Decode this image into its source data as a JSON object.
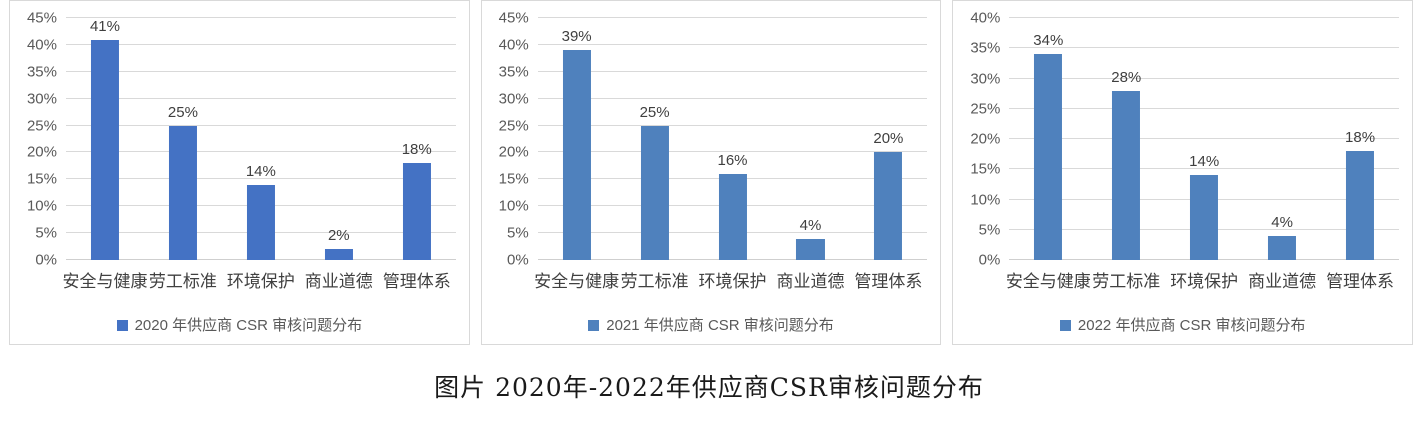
{
  "caption": "图片 2020年-2022年供应商CSR审核问题分布",
  "colors": {
    "bar_2020": "#4472C4",
    "bar_2021": "#4F81BD",
    "bar_2022": "#4F81BD",
    "gridline": "#D9D9D9",
    "axis_text": "#595959",
    "label_text": "#3F3F3F"
  },
  "chart_data": [
    {
      "type": "bar",
      "title": "",
      "legend": "2020 年供应商 CSR 审核问题分布",
      "legend_position": "bottom",
      "categories": [
        "安全与健康",
        "劳工标准",
        "环境保护",
        "商业道德",
        "管理体系"
      ],
      "values": [
        41,
        25,
        14,
        2,
        18
      ],
      "data_labels": [
        "41%",
        "25%",
        "14%",
        "2%",
        "18%"
      ],
      "xlabel": "",
      "ylabel": "",
      "ylim": [
        0,
        45
      ],
      "ytick_step": 5,
      "ytick_labels": [
        "0%",
        "5%",
        "10%",
        "15%",
        "20%",
        "25%",
        "30%",
        "35%",
        "40%",
        "45%"
      ],
      "grid": true,
      "bar_color": "#4472C4"
    },
    {
      "type": "bar",
      "title": "",
      "legend": "2021 年供应商 CSR 审核问题分布",
      "legend_position": "bottom",
      "categories": [
        "安全与健康",
        "劳工标准",
        "环境保护",
        "商业道德",
        "管理体系"
      ],
      "values": [
        39,
        25,
        16,
        4,
        20
      ],
      "data_labels": [
        "39%",
        "25%",
        "16%",
        "4%",
        "20%"
      ],
      "xlabel": "",
      "ylabel": "",
      "ylim": [
        0,
        45
      ],
      "ytick_step": 5,
      "ytick_labels": [
        "0%",
        "5%",
        "10%",
        "15%",
        "20%",
        "25%",
        "30%",
        "35%",
        "40%",
        "45%"
      ],
      "grid": true,
      "bar_color": "#4F81BD"
    },
    {
      "type": "bar",
      "title": "",
      "legend": "2022 年供应商 CSR 审核问题分布",
      "legend_position": "bottom",
      "categories": [
        "安全与健康",
        "劳工标准",
        "环境保护",
        "商业道德",
        "管理体系"
      ],
      "values": [
        34,
        28,
        14,
        4,
        18
      ],
      "data_labels": [
        "34%",
        "28%",
        "14%",
        "4%",
        "18%"
      ],
      "xlabel": "",
      "ylabel": "",
      "ylim": [
        0,
        40
      ],
      "ytick_step": 5,
      "ytick_labels": [
        "0%",
        "5%",
        "10%",
        "15%",
        "20%",
        "25%",
        "30%",
        "35%",
        "40%"
      ],
      "grid": true,
      "bar_color": "#4F81BD"
    }
  ]
}
